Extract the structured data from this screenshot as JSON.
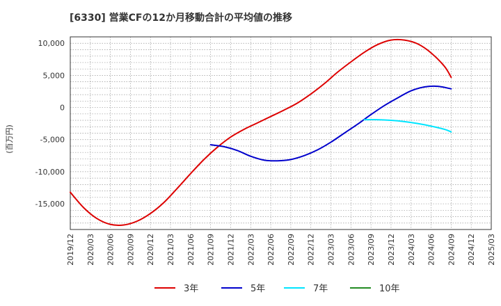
{
  "chart_data": {
    "type": "line",
    "title": "[6330]  営業CFの12か月移動合計の平均値の推移",
    "ylabel": "(百万円)",
    "xlabel": "",
    "ylim": [
      -19000,
      11000
    ],
    "yticks": [
      10000,
      5000,
      0,
      -5000,
      -10000,
      -15000
    ],
    "ytick_labels": [
      "10,000",
      "5,000",
      "0",
      "-5,000",
      "-10,000",
      "-15,000"
    ],
    "x_start": "2019-12",
    "x_end": "2025-03",
    "xtick_labels": [
      "2019/12",
      "2020/03",
      "2020/06",
      "2020/09",
      "2020/12",
      "2021/03",
      "2021/06",
      "2021/09",
      "2021/12",
      "2022/03",
      "2022/06",
      "2022/09",
      "2022/12",
      "2023/03",
      "2023/06",
      "2023/09",
      "2023/12",
      "2024/03",
      "2024/06",
      "2024/09",
      "2024/12",
      "2025/03"
    ],
    "grid": true,
    "legend_position": "bottom",
    "series": [
      {
        "name": "3年",
        "color": "#dd0000",
        "points": [
          [
            "2019-12",
            -13200
          ],
          [
            "2020-02",
            -15600
          ],
          [
            "2020-04",
            -17300
          ],
          [
            "2020-06",
            -18200
          ],
          [
            "2020-08",
            -18300
          ],
          [
            "2020-10",
            -17700
          ],
          [
            "2020-12",
            -16500
          ],
          [
            "2021-02",
            -14800
          ],
          [
            "2021-04",
            -12600
          ],
          [
            "2021-06",
            -10300
          ],
          [
            "2021-08",
            -8100
          ],
          [
            "2021-10",
            -6200
          ],
          [
            "2021-12",
            -4600
          ],
          [
            "2022-02",
            -3400
          ],
          [
            "2022-04",
            -2400
          ],
          [
            "2022-06",
            -1400
          ],
          [
            "2022-08",
            -400
          ],
          [
            "2022-10",
            700
          ],
          [
            "2022-12",
            2100
          ],
          [
            "2023-02",
            3700
          ],
          [
            "2023-04",
            5500
          ],
          [
            "2023-06",
            7100
          ],
          [
            "2023-08",
            8600
          ],
          [
            "2023-10",
            9800
          ],
          [
            "2023-12",
            10500
          ],
          [
            "2024-02",
            10500
          ],
          [
            "2024-04",
            9900
          ],
          [
            "2024-06",
            8500
          ],
          [
            "2024-08",
            6400
          ],
          [
            "2024-09",
            4700
          ]
        ]
      },
      {
        "name": "5年",
        "color": "#0000cc",
        "points": [
          [
            "2021-09",
            -5800
          ],
          [
            "2021-11",
            -6100
          ],
          [
            "2022-01",
            -6700
          ],
          [
            "2022-03",
            -7600
          ],
          [
            "2022-05",
            -8200
          ],
          [
            "2022-07",
            -8300
          ],
          [
            "2022-09",
            -8100
          ],
          [
            "2022-11",
            -7500
          ],
          [
            "2023-01",
            -6600
          ],
          [
            "2023-03",
            -5400
          ],
          [
            "2023-05",
            -4000
          ],
          [
            "2023-07",
            -2600
          ],
          [
            "2023-09",
            -1100
          ],
          [
            "2023-11",
            300
          ],
          [
            "2024-01",
            1500
          ],
          [
            "2024-03",
            2600
          ],
          [
            "2024-05",
            3200
          ],
          [
            "2024-07",
            3300
          ],
          [
            "2024-09",
            2900
          ]
        ]
      },
      {
        "name": "7年",
        "color": "#00e5ff",
        "points": [
          [
            "2023-08",
            -1900
          ],
          [
            "2023-10",
            -1900
          ],
          [
            "2023-12",
            -2000
          ],
          [
            "2024-02",
            -2200
          ],
          [
            "2024-04",
            -2500
          ],
          [
            "2024-06",
            -2900
          ],
          [
            "2024-08",
            -3400
          ],
          [
            "2024-09",
            -3800
          ]
        ]
      },
      {
        "name": "10年",
        "color": "#228b22",
        "points": []
      }
    ]
  }
}
